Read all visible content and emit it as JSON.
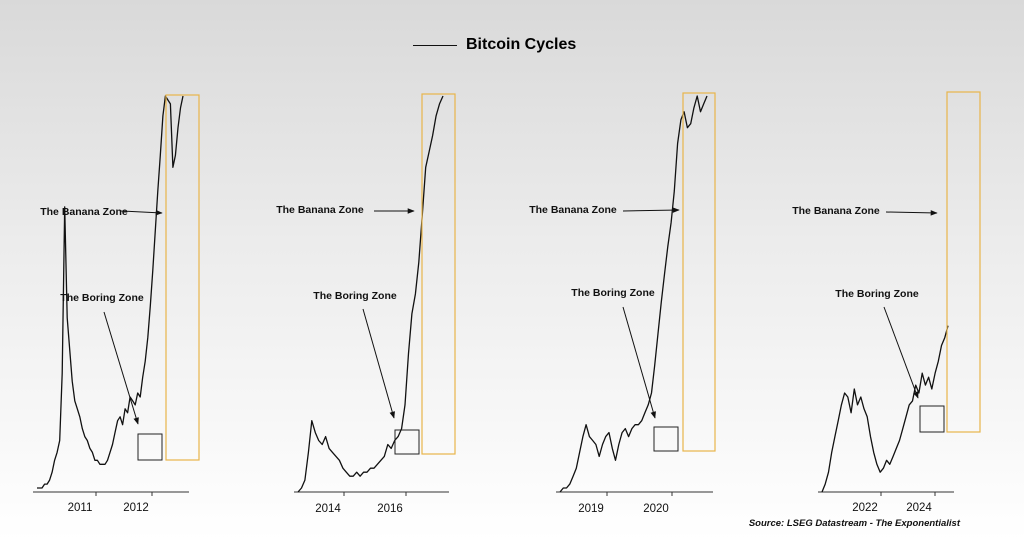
{
  "chart_data": {
    "type": "line",
    "title": "",
    "series_name": "Bitcoin Cycles",
    "source": "Source: LSEG Datastream - The Exponentialist",
    "colors": {
      "line": "#111111",
      "banana_box": "#e8b54a",
      "boring_box": "#222222",
      "arrow": "#111111"
    },
    "panels": [
      {
        "x_ticks": [
          "2011",
          "2012"
        ],
        "annotations": {
          "banana": "The Banana Zone",
          "boring": "The Boring Zone"
        },
        "values": [
          0.01,
          0.01,
          0.01,
          0.02,
          0.02,
          0.03,
          0.05,
          0.08,
          0.1,
          0.13,
          0.3,
          0.72,
          0.44,
          0.36,
          0.28,
          0.23,
          0.21,
          0.19,
          0.16,
          0.14,
          0.13,
          0.11,
          0.1,
          0.08,
          0.08,
          0.07,
          0.07,
          0.07,
          0.08,
          0.1,
          0.12,
          0.15,
          0.18,
          0.19,
          0.17,
          0.21,
          0.2,
          0.24,
          0.23,
          0.22,
          0.25,
          0.24,
          0.29,
          0.33,
          0.39,
          0.47,
          0.56,
          0.66,
          0.76,
          0.85,
          0.95,
          1.0,
          0.99,
          0.98,
          0.82,
          0.85,
          0.92,
          0.97,
          1.0
        ]
      },
      {
        "x_ticks": [
          "2014",
          "2016"
        ],
        "annotations": {
          "banana": "The Banana Zone",
          "boring": "The Boring Zone"
        },
        "values": [
          0.0,
          0.01,
          0.03,
          0.1,
          0.18,
          0.15,
          0.13,
          0.12,
          0.14,
          0.11,
          0.1,
          0.09,
          0.08,
          0.06,
          0.05,
          0.04,
          0.04,
          0.05,
          0.04,
          0.05,
          0.05,
          0.06,
          0.06,
          0.07,
          0.08,
          0.09,
          0.12,
          0.11,
          0.13,
          0.14,
          0.16,
          0.22,
          0.35,
          0.45,
          0.5,
          0.58,
          0.7,
          0.82,
          0.86,
          0.9,
          0.95,
          0.98,
          1.0
        ]
      },
      {
        "x_ticks": [
          "2019",
          "2020"
        ],
        "annotations": {
          "banana": "The Banana Zone",
          "boring": "The Boring Zone"
        },
        "values": [
          0.0,
          0.01,
          0.01,
          0.02,
          0.04,
          0.06,
          0.1,
          0.14,
          0.17,
          0.14,
          0.13,
          0.12,
          0.09,
          0.12,
          0.14,
          0.15,
          0.11,
          0.08,
          0.12,
          0.15,
          0.16,
          0.14,
          0.16,
          0.17,
          0.17,
          0.18,
          0.2,
          0.22,
          0.25,
          0.32,
          0.4,
          0.48,
          0.55,
          0.62,
          0.68,
          0.76,
          0.88,
          0.94,
          0.96,
          0.92,
          0.93,
          0.97,
          1.0,
          0.96,
          0.98,
          1.0
        ]
      },
      {
        "x_ticks": [
          "2022",
          "2024"
        ],
        "annotations": {
          "banana": "The Banana Zone",
          "boring": "The Boring Zone"
        },
        "values": [
          0.0,
          0.02,
          0.05,
          0.1,
          0.14,
          0.18,
          0.22,
          0.25,
          0.24,
          0.2,
          0.26,
          0.22,
          0.24,
          0.21,
          0.19,
          0.14,
          0.1,
          0.07,
          0.05,
          0.06,
          0.08,
          0.07,
          0.09,
          0.11,
          0.13,
          0.16,
          0.19,
          0.22,
          0.23,
          0.27,
          0.25,
          0.3,
          0.27,
          0.29,
          0.26,
          0.3,
          0.33,
          0.37,
          0.39,
          0.42
        ]
      }
    ]
  }
}
